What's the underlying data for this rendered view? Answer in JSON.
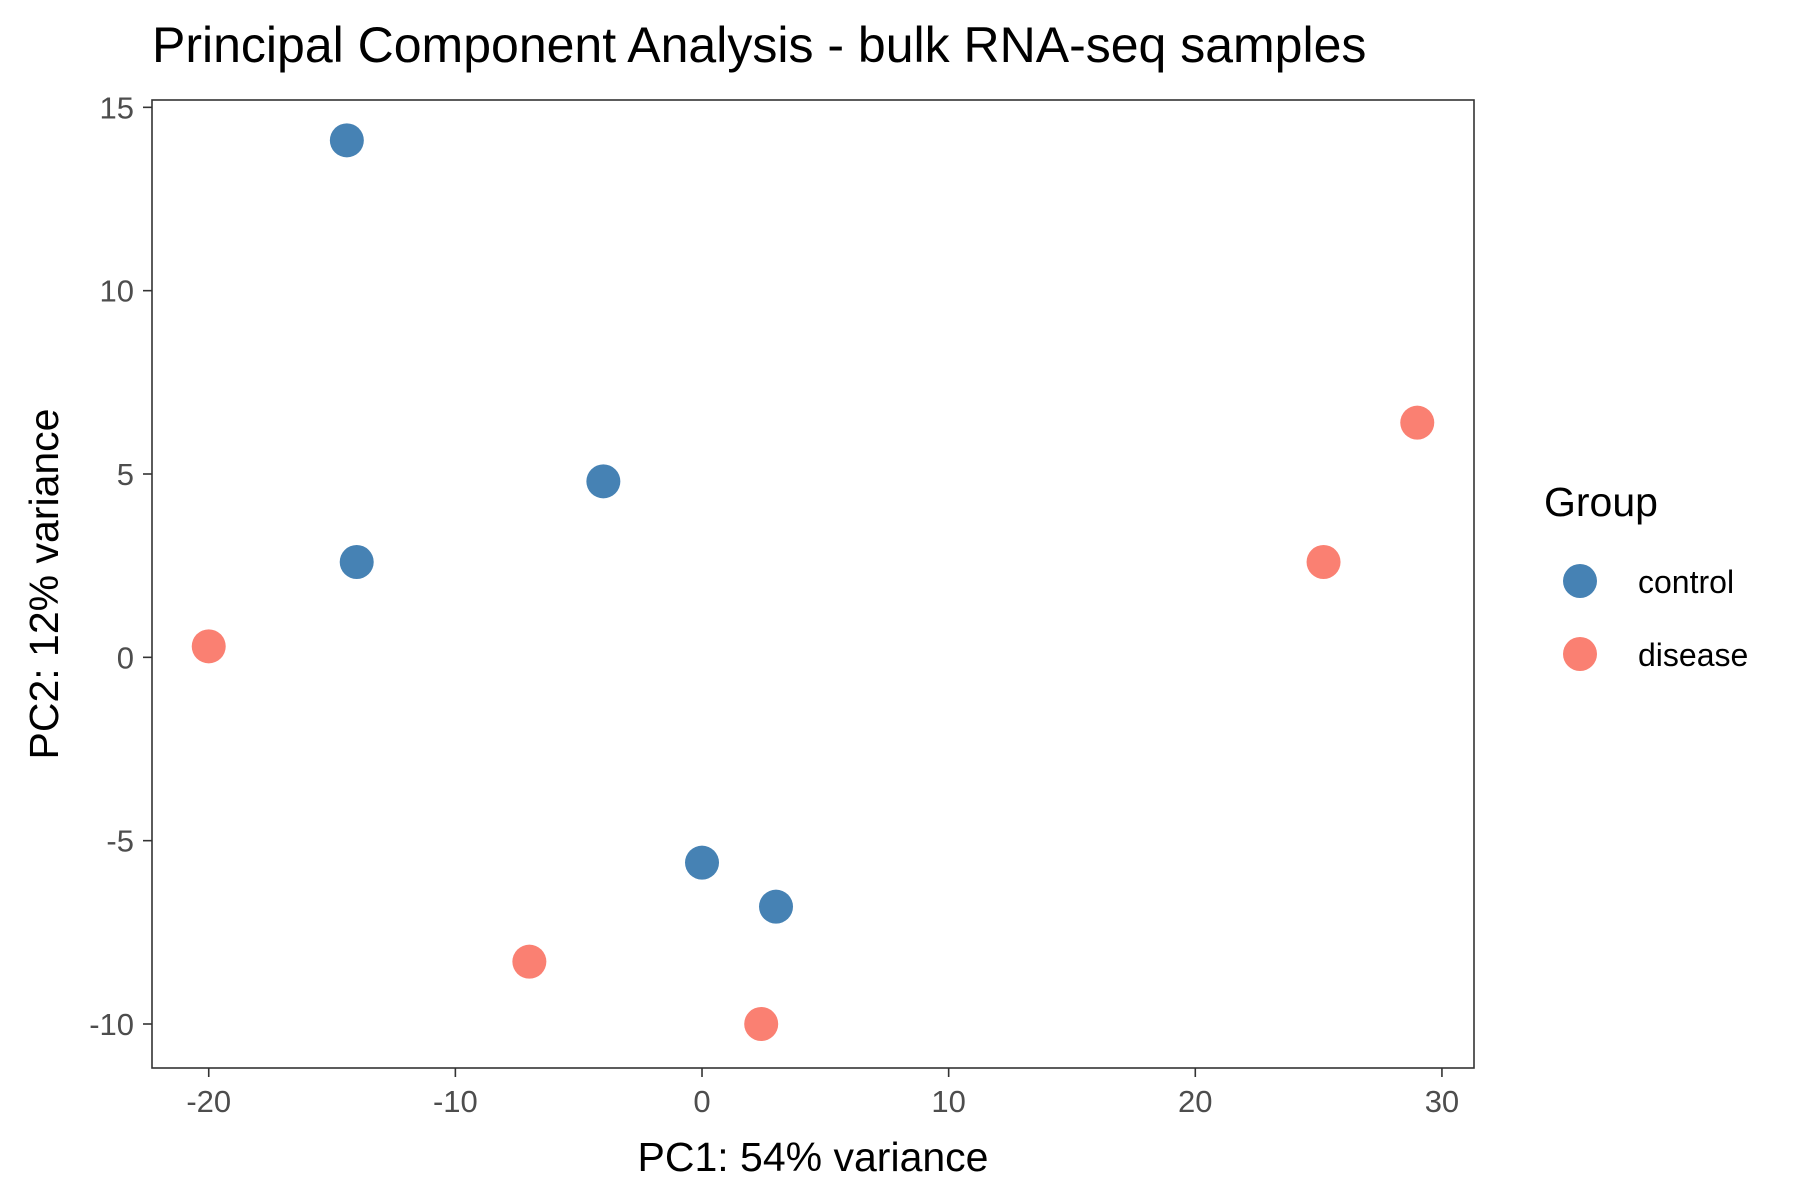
{
  "chart_data": {
    "type": "scatter",
    "title": "Principal Component Analysis - bulk RNA-seq samples",
    "xlabel": "PC1: 54% variance",
    "ylabel": "PC2: 12% variance",
    "xlim": [
      -22.3,
      31.3
    ],
    "ylim": [
      -11.2,
      15.2
    ],
    "xticks": [
      -20,
      -10,
      0,
      10,
      20,
      30
    ],
    "xtick_labels": [
      "-20",
      "-10",
      "0",
      "10",
      "20",
      "30"
    ],
    "yticks": [
      -10,
      -5,
      0,
      5,
      10,
      15
    ],
    "ytick_labels": [
      "-10",
      "-5",
      "0",
      "5",
      "10",
      "15"
    ],
    "grid": false,
    "legend": {
      "title": "Group",
      "position": "right",
      "entries": [
        {
          "label": "control",
          "color": "#4682b4"
        },
        {
          "label": "disease",
          "color": "#fa8072"
        }
      ]
    },
    "series": [
      {
        "name": "control",
        "color": "#4682b4",
        "points": [
          {
            "x": -14.4,
            "y": 14.1
          },
          {
            "x": -14.0,
            "y": 2.6
          },
          {
            "x": -4.0,
            "y": 4.8
          },
          {
            "x": 0.0,
            "y": -5.6
          },
          {
            "x": 3.0,
            "y": -6.8
          }
        ]
      },
      {
        "name": "disease",
        "color": "#fa8072",
        "points": [
          {
            "x": -20.0,
            "y": 0.3
          },
          {
            "x": -7.0,
            "y": -8.3
          },
          {
            "x": 2.4,
            "y": -10.0
          },
          {
            "x": 25.2,
            "y": 2.6
          },
          {
            "x": 29.0,
            "y": 6.4
          }
        ]
      }
    ]
  }
}
